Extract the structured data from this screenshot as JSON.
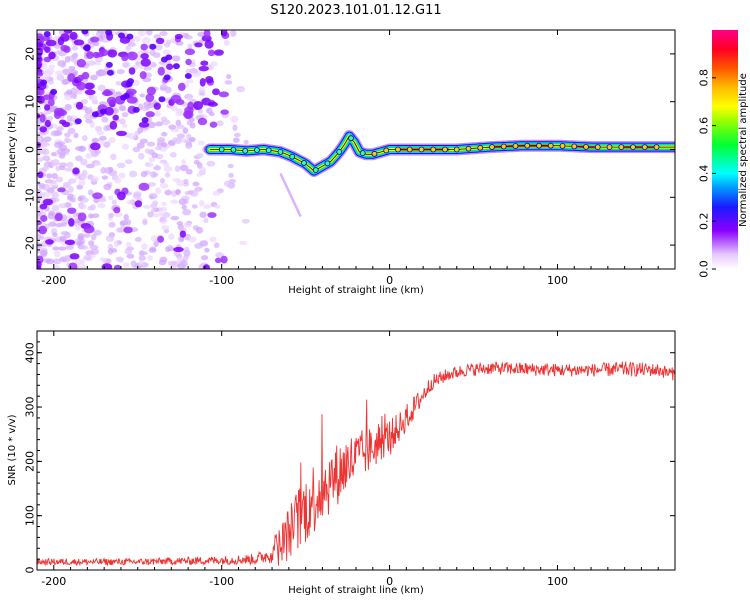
{
  "title": "S120.2023.101.01.12.G11",
  "chart_data": [
    {
      "type": "heatmap",
      "name": "spectrogram",
      "xlabel": "Height of straight line (km)",
      "ylabel": "Frequency (Hz)",
      "xlim": [
        -210,
        170
      ],
      "ylim": [
        -25,
        25
      ],
      "x_ticks": [
        -200,
        -100,
        0,
        100
      ],
      "y_ticks": [
        -20,
        -10,
        0,
        10,
        20
      ],
      "ridge": {
        "x": [
          -107,
          -95,
          -85,
          -75,
          -65,
          -58,
          -50,
          -45,
          -40,
          -35,
          -30,
          -27,
          -24,
          -21,
          -18,
          -14,
          -10,
          -5,
          0,
          20,
          40,
          60,
          80,
          100,
          120,
          140,
          160,
          170
        ],
        "freq": [
          0,
          0,
          -0.3,
          0,
          -0.5,
          -1.5,
          -3,
          -4.5,
          -3.5,
          -2.5,
          -0.5,
          1,
          2.8,
          1.5,
          -0.5,
          -1,
          -1,
          -0.5,
          0,
          0,
          0,
          0.5,
          0.8,
          0.8,
          0.5,
          0.5,
          0.5,
          0.5
        ]
      },
      "colorbar": {
        "label": "Normalized spectral amplitude",
        "range": [
          0,
          1
        ],
        "ticks": [
          0.0,
          0.2,
          0.4,
          0.6,
          0.8
        ],
        "tick_labels": [
          "0.0",
          "0.2",
          "0.4",
          "0.6",
          "0.8"
        ]
      }
    },
    {
      "type": "line",
      "name": "snr",
      "xlabel": "Height of straight line (km)",
      "ylabel": "SNR (10 * v/v)",
      "xlim": [
        -210,
        170
      ],
      "ylim": [
        0,
        440
      ],
      "x_ticks": [
        -200,
        -100,
        0,
        100
      ],
      "y_ticks": [
        0,
        100,
        200,
        300,
        400
      ],
      "color": "#ee3333",
      "envelope": {
        "x": [
          -210,
          -150,
          -100,
          -80,
          -72,
          -65,
          -55,
          -45,
          -35,
          -25,
          -15,
          -5,
          5,
          15,
          25,
          35,
          45,
          60,
          80,
          100,
          120,
          140,
          160,
          170
        ],
        "y": [
          15,
          15,
          18,
          20,
          28,
          45,
          90,
          135,
          165,
          195,
          215,
          235,
          260,
          300,
          345,
          360,
          368,
          372,
          370,
          368,
          368,
          370,
          368,
          360
        ],
        "amp": [
          6,
          6,
          8,
          10,
          15,
          40,
          60,
          70,
          60,
          55,
          45,
          35,
          28,
          22,
          14,
          12,
          12,
          12,
          12,
          12,
          12,
          14,
          12,
          12
        ]
      }
    }
  ]
}
